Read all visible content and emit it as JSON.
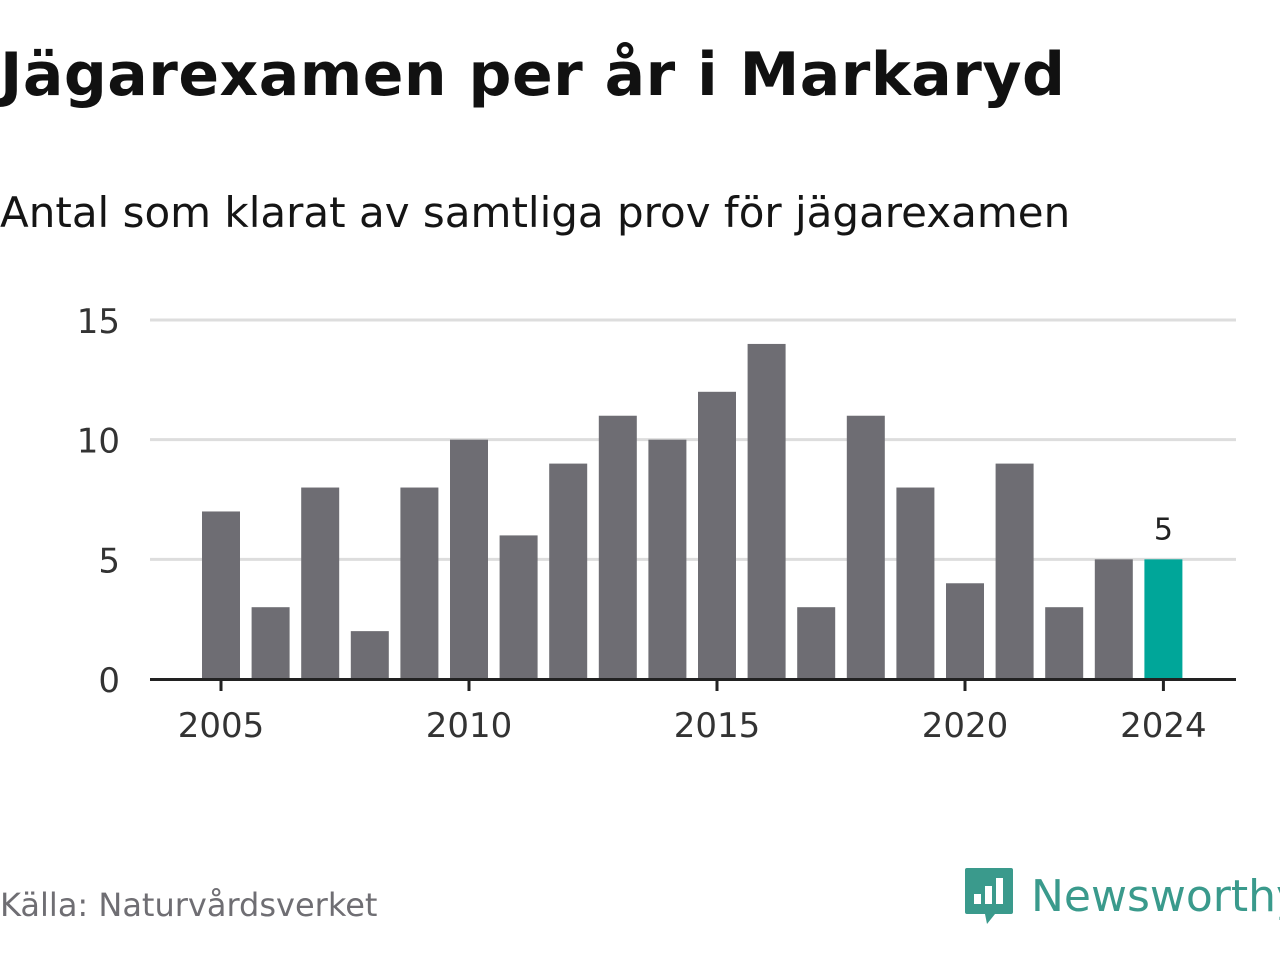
{
  "title": "Jägarexamen per år i Markaryd",
  "subtitle": "Antal som klarat av samtliga prov för jägarexamen",
  "source": "Källa: Naturvårdsverket",
  "brand": "Newsworthy",
  "colors": {
    "bar": "#6e6d73",
    "highlight": "#00a699",
    "grid": "#dddddd",
    "axis": "#222222",
    "brand": "#3a9a8c"
  },
  "chart_data": {
    "type": "bar",
    "x": [
      2005,
      2006,
      2007,
      2008,
      2009,
      2010,
      2011,
      2012,
      2013,
      2014,
      2015,
      2016,
      2017,
      2018,
      2019,
      2020,
      2021,
      2022,
      2023,
      2024
    ],
    "values": [
      7,
      3,
      8,
      2,
      8,
      10,
      6,
      9,
      11,
      10,
      12,
      14,
      3,
      11,
      8,
      4,
      9,
      3,
      5,
      5
    ],
    "ylim": [
      0,
      15
    ],
    "yticks": [
      "0",
      "5",
      "10",
      "15"
    ],
    "xticks": [
      "2005",
      "2010",
      "2015",
      "2020",
      "2024"
    ],
    "highlight": "2024",
    "annotation": "5",
    "grid": true
  }
}
